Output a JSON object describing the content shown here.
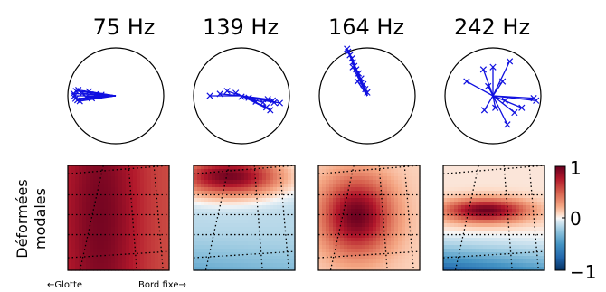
{
  "chart_data": [
    {
      "type": "scatter",
      "title": "75 Hz",
      "style": "polar-phasor",
      "points": [
        [
          -0.88,
          0.05
        ],
        [
          -0.86,
          0.0
        ],
        [
          -0.84,
          -0.06
        ],
        [
          -0.83,
          0.1
        ],
        [
          -0.8,
          -0.09
        ],
        [
          -0.78,
          0.12
        ],
        [
          -0.75,
          -0.11
        ],
        [
          -0.7,
          0.05
        ],
        [
          -0.62,
          -0.02
        ],
        [
          -0.56,
          0.09
        ],
        [
          -0.5,
          -0.05
        ],
        [
          -0.42,
          0.03
        ],
        [
          -0.35,
          0.0
        ],
        [
          -0.3,
          0.02
        ]
      ],
      "color": "#1010e0"
    },
    {
      "type": "scatter",
      "title": "139 Hz",
      "style": "polar-phasor",
      "points": [
        [
          -0.66,
          0.0
        ],
        [
          -0.45,
          0.04
        ],
        [
          -0.3,
          0.1
        ],
        [
          -0.12,
          0.06
        ],
        [
          0.0,
          -0.02
        ],
        [
          0.15,
          -0.04
        ],
        [
          0.3,
          -0.12
        ],
        [
          0.45,
          -0.14
        ],
        [
          0.55,
          -0.07
        ],
        [
          0.6,
          -0.3
        ],
        [
          0.68,
          -0.14
        ],
        [
          0.8,
          -0.15
        ],
        [
          0.52,
          -0.24
        ],
        [
          0.65,
          -0.1
        ]
      ],
      "color": "#1010e0"
    },
    {
      "type": "scatter",
      "title": "164 Hz",
      "style": "polar-phasor",
      "points": [
        [
          -0.42,
          0.98
        ],
        [
          -0.4,
          0.92
        ],
        [
          -0.36,
          0.85
        ],
        [
          -0.32,
          0.78
        ],
        [
          -0.3,
          0.7
        ],
        [
          -0.27,
          0.62
        ],
        [
          -0.23,
          0.55
        ],
        [
          -0.18,
          0.47
        ],
        [
          -0.13,
          0.36
        ],
        [
          -0.08,
          0.24
        ],
        [
          -0.04,
          0.14
        ],
        [
          0.0,
          0.07
        ],
        [
          -0.3,
          0.6
        ],
        [
          -0.2,
          0.3
        ]
      ],
      "color": "#1010e0"
    },
    {
      "type": "scatter",
      "title": "242 Hz",
      "style": "polar-phasor",
      "points": [
        [
          -0.2,
          0.55
        ],
        [
          0.0,
          0.6
        ],
        [
          0.35,
          0.72
        ],
        [
          -0.55,
          0.3
        ],
        [
          -0.1,
          0.2
        ],
        [
          0.2,
          0.3
        ],
        [
          0.85,
          -0.05
        ],
        [
          0.6,
          -0.25
        ],
        [
          0.3,
          -0.6
        ],
        [
          0.45,
          -0.35
        ],
        [
          0.05,
          -0.25
        ],
        [
          -0.18,
          -0.3
        ],
        [
          0.9,
          -0.1
        ],
        [
          0.25,
          -0.1
        ]
      ],
      "color": "#1010e0"
    },
    {
      "type": "heatmap",
      "title": "",
      "ylabel": "Déformées modales",
      "field": {
        "rx": 0.45,
        "ry": 1.6,
        "cx": 0.32,
        "cy": 0.48,
        "peak": 0.95,
        "floor": 0.55,
        "neg": 0.0
      }
    },
    {
      "type": "heatmap",
      "title": "",
      "field": {
        "rx": 0.6,
        "ry": 0.22,
        "cx": 0.35,
        "cy": 0.1,
        "peak": 0.95,
        "floor": -0.15,
        "neg": 0.25
      }
    },
    {
      "type": "heatmap",
      "title": "",
      "field": {
        "rx": 0.38,
        "ry": 0.4,
        "cx": 0.38,
        "cy": 0.48,
        "peak": 0.98,
        "floor": 0.1,
        "neg": 0.0
      }
    },
    {
      "type": "heatmap",
      "title": "",
      "field": {
        "rx": 0.45,
        "ry": 0.12,
        "cx": 0.42,
        "cy": 0.43,
        "peak": 0.98,
        "floor": 0.05,
        "neg": 0.85
      }
    }
  ],
  "colorbar": {
    "ticks": [
      "1",
      "0",
      "−1"
    ],
    "values": [
      1,
      0,
      -1
    ]
  },
  "bottom": {
    "left_label": "←Glotte",
    "right_label": "Bord fixe→"
  },
  "colors": {
    "trace": "#1010e0",
    "red": "#67001f",
    "white": "#f7f7f7",
    "blue": "#053061"
  }
}
